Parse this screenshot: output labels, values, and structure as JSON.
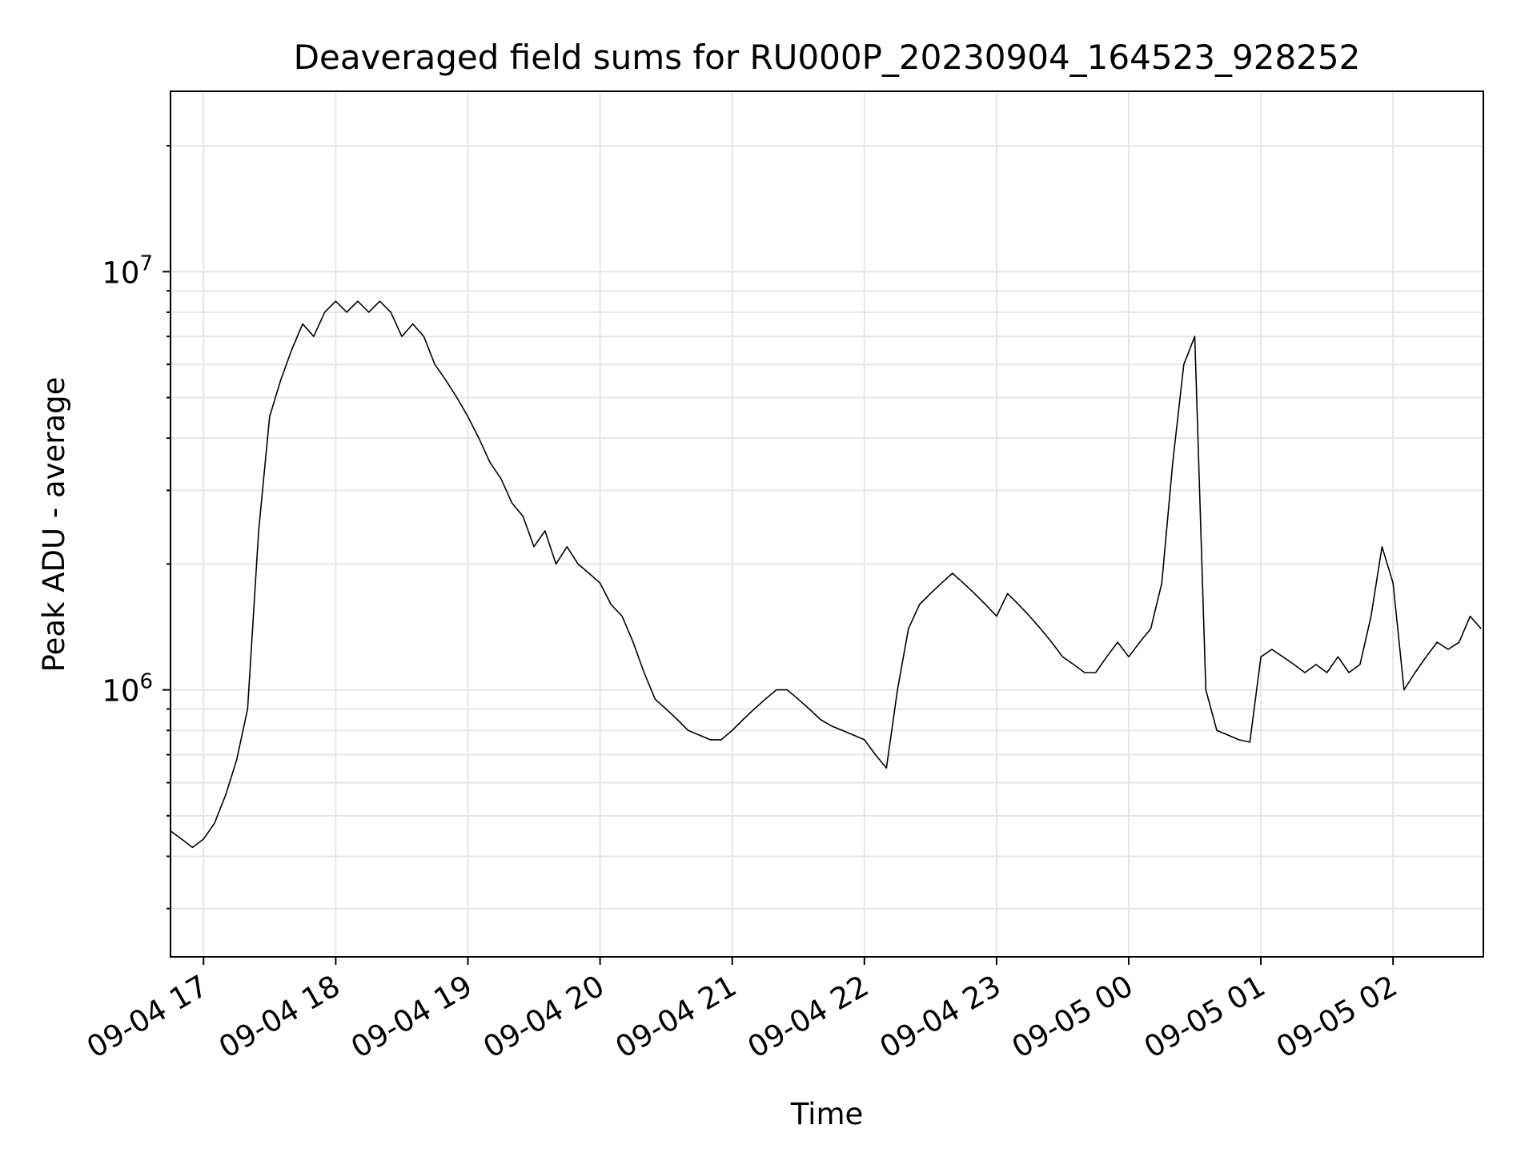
{
  "chart_data": {
    "type": "line",
    "title": "Deaveraged field sums for RU000P_20230904_164523_928252",
    "xlabel": "Time",
    "ylabel": "Peak ADU - average",
    "y_scale": "log",
    "y_tick_labels": [
      {
        "base": "10",
        "exp": "6",
        "value": 1000000
      },
      {
        "base": "10",
        "exp": "7",
        "value": 10000000
      }
    ],
    "x_tick_labels": [
      "09-04 17",
      "09-04 18",
      "09-04 19",
      "09-04 20",
      "09-04 21",
      "09-04 22",
      "09-04 23",
      "09-05 00",
      "09-05 01",
      "09-05 02"
    ],
    "x_range": [
      "2023-09-04 16:45",
      "2023-09-05 02:41"
    ],
    "ylim": [
      230000,
      27000000
    ],
    "grid": true,
    "line_color": "#000000",
    "series": [
      {
        "points": [
          [
            "2023-09-04 16:45",
            460000
          ],
          [
            "2023-09-04 16:50",
            440000
          ],
          [
            "2023-09-04 16:55",
            420000
          ],
          [
            "2023-09-04 17:00",
            440000
          ],
          [
            "2023-09-04 17:05",
            480000
          ],
          [
            "2023-09-04 17:10",
            560000
          ],
          [
            "2023-09-04 17:15",
            680000
          ],
          [
            "2023-09-04 17:20",
            900000
          ],
          [
            "2023-09-04 17:25",
            2400000
          ],
          [
            "2023-09-04 17:30",
            4500000
          ],
          [
            "2023-09-04 17:35",
            5500000
          ],
          [
            "2023-09-04 17:40",
            6500000
          ],
          [
            "2023-09-04 17:45",
            7500000
          ],
          [
            "2023-09-04 17:50",
            7000000
          ],
          [
            "2023-09-04 17:55",
            8000000
          ],
          [
            "2023-09-04 18:00",
            8500000
          ],
          [
            "2023-09-04 18:05",
            8000000
          ],
          [
            "2023-09-04 18:10",
            8500000
          ],
          [
            "2023-09-04 18:15",
            8000000
          ],
          [
            "2023-09-04 18:20",
            8500000
          ],
          [
            "2023-09-04 18:25",
            8000000
          ],
          [
            "2023-09-04 18:30",
            7000000
          ],
          [
            "2023-09-04 18:35",
            7500000
          ],
          [
            "2023-09-04 18:40",
            7000000
          ],
          [
            "2023-09-04 18:45",
            6000000
          ],
          [
            "2023-09-04 18:50",
            5500000
          ],
          [
            "2023-09-04 18:55",
            5000000
          ],
          [
            "2023-09-04 19:00",
            4500000
          ],
          [
            "2023-09-04 19:05",
            4000000
          ],
          [
            "2023-09-04 19:10",
            3500000
          ],
          [
            "2023-09-04 19:15",
            3200000
          ],
          [
            "2023-09-04 19:20",
            2800000
          ],
          [
            "2023-09-04 19:25",
            2600000
          ],
          [
            "2023-09-04 19:30",
            2200000
          ],
          [
            "2023-09-04 19:35",
            2400000
          ],
          [
            "2023-09-04 19:40",
            2000000
          ],
          [
            "2023-09-04 19:45",
            2200000
          ],
          [
            "2023-09-04 19:50",
            2000000
          ],
          [
            "2023-09-04 19:55",
            1900000
          ],
          [
            "2023-09-04 20:00",
            1800000
          ],
          [
            "2023-09-04 20:05",
            1600000
          ],
          [
            "2023-09-04 20:10",
            1500000
          ],
          [
            "2023-09-04 20:15",
            1300000
          ],
          [
            "2023-09-04 20:20",
            1100000
          ],
          [
            "2023-09-04 20:25",
            950000
          ],
          [
            "2023-09-04 20:30",
            900000
          ],
          [
            "2023-09-04 20:35",
            850000
          ],
          [
            "2023-09-04 20:40",
            800000
          ],
          [
            "2023-09-04 20:45",
            780000
          ],
          [
            "2023-09-04 20:50",
            760000
          ],
          [
            "2023-09-04 20:55",
            760000
          ],
          [
            "2023-09-04 21:00",
            800000
          ],
          [
            "2023-09-04 21:05",
            850000
          ],
          [
            "2023-09-04 21:10",
            900000
          ],
          [
            "2023-09-04 21:15",
            950000
          ],
          [
            "2023-09-04 21:20",
            1000000
          ],
          [
            "2023-09-04 21:25",
            1000000
          ],
          [
            "2023-09-04 21:30",
            950000
          ],
          [
            "2023-09-04 21:35",
            900000
          ],
          [
            "2023-09-04 21:40",
            850000
          ],
          [
            "2023-09-04 21:45",
            820000
          ],
          [
            "2023-09-04 21:50",
            800000
          ],
          [
            "2023-09-04 21:55",
            780000
          ],
          [
            "2023-09-04 22:00",
            760000
          ],
          [
            "2023-09-04 22:05",
            700000
          ],
          [
            "2023-09-04 22:10",
            650000
          ],
          [
            "2023-09-04 22:15",
            1000000
          ],
          [
            "2023-09-04 22:20",
            1400000
          ],
          [
            "2023-09-04 22:25",
            1600000
          ],
          [
            "2023-09-04 22:30",
            1700000
          ],
          [
            "2023-09-04 22:35",
            1800000
          ],
          [
            "2023-09-04 22:40",
            1900000
          ],
          [
            "2023-09-04 22:45",
            1800000
          ],
          [
            "2023-09-04 22:50",
            1700000
          ],
          [
            "2023-09-04 22:55",
            1600000
          ],
          [
            "2023-09-04 23:00",
            1500000
          ],
          [
            "2023-09-04 23:05",
            1700000
          ],
          [
            "2023-09-04 23:10",
            1600000
          ],
          [
            "2023-09-04 23:15",
            1500000
          ],
          [
            "2023-09-04 23:20",
            1400000
          ],
          [
            "2023-09-04 23:25",
            1300000
          ],
          [
            "2023-09-04 23:30",
            1200000
          ],
          [
            "2023-09-04 23:35",
            1150000
          ],
          [
            "2023-09-04 23:40",
            1100000
          ],
          [
            "2023-09-04 23:45",
            1100000
          ],
          [
            "2023-09-04 23:50",
            1200000
          ],
          [
            "2023-09-04 23:55",
            1300000
          ],
          [
            "2023-09-05 00:00",
            1200000
          ],
          [
            "2023-09-05 00:05",
            1300000
          ],
          [
            "2023-09-05 00:10",
            1400000
          ],
          [
            "2023-09-05 00:15",
            1800000
          ],
          [
            "2023-09-05 00:20",
            3500000
          ],
          [
            "2023-09-05 00:25",
            6000000
          ],
          [
            "2023-09-05 00:30",
            7000000
          ],
          [
            "2023-09-05 00:35",
            1000000
          ],
          [
            "2023-09-05 00:40",
            800000
          ],
          [
            "2023-09-05 00:45",
            780000
          ],
          [
            "2023-09-05 00:50",
            760000
          ],
          [
            "2023-09-05 00:55",
            750000
          ],
          [
            "2023-09-05 01:00",
            1200000
          ],
          [
            "2023-09-05 01:05",
            1250000
          ],
          [
            "2023-09-05 01:10",
            1200000
          ],
          [
            "2023-09-05 01:15",
            1150000
          ],
          [
            "2023-09-05 01:20",
            1100000
          ],
          [
            "2023-09-05 01:25",
            1150000
          ],
          [
            "2023-09-05 01:30",
            1100000
          ],
          [
            "2023-09-05 01:35",
            1200000
          ],
          [
            "2023-09-05 01:40",
            1100000
          ],
          [
            "2023-09-05 01:45",
            1150000
          ],
          [
            "2023-09-05 01:50",
            1500000
          ],
          [
            "2023-09-05 01:55",
            2200000
          ],
          [
            "2023-09-05 02:00",
            1800000
          ],
          [
            "2023-09-05 02:05",
            1000000
          ],
          [
            "2023-09-05 02:10",
            1100000
          ],
          [
            "2023-09-05 02:15",
            1200000
          ],
          [
            "2023-09-05 02:20",
            1300000
          ],
          [
            "2023-09-05 02:25",
            1250000
          ],
          [
            "2023-09-05 02:30",
            1300000
          ],
          [
            "2023-09-05 02:35",
            1500000
          ],
          [
            "2023-09-05 02:40",
            1400000
          ]
        ]
      }
    ]
  }
}
